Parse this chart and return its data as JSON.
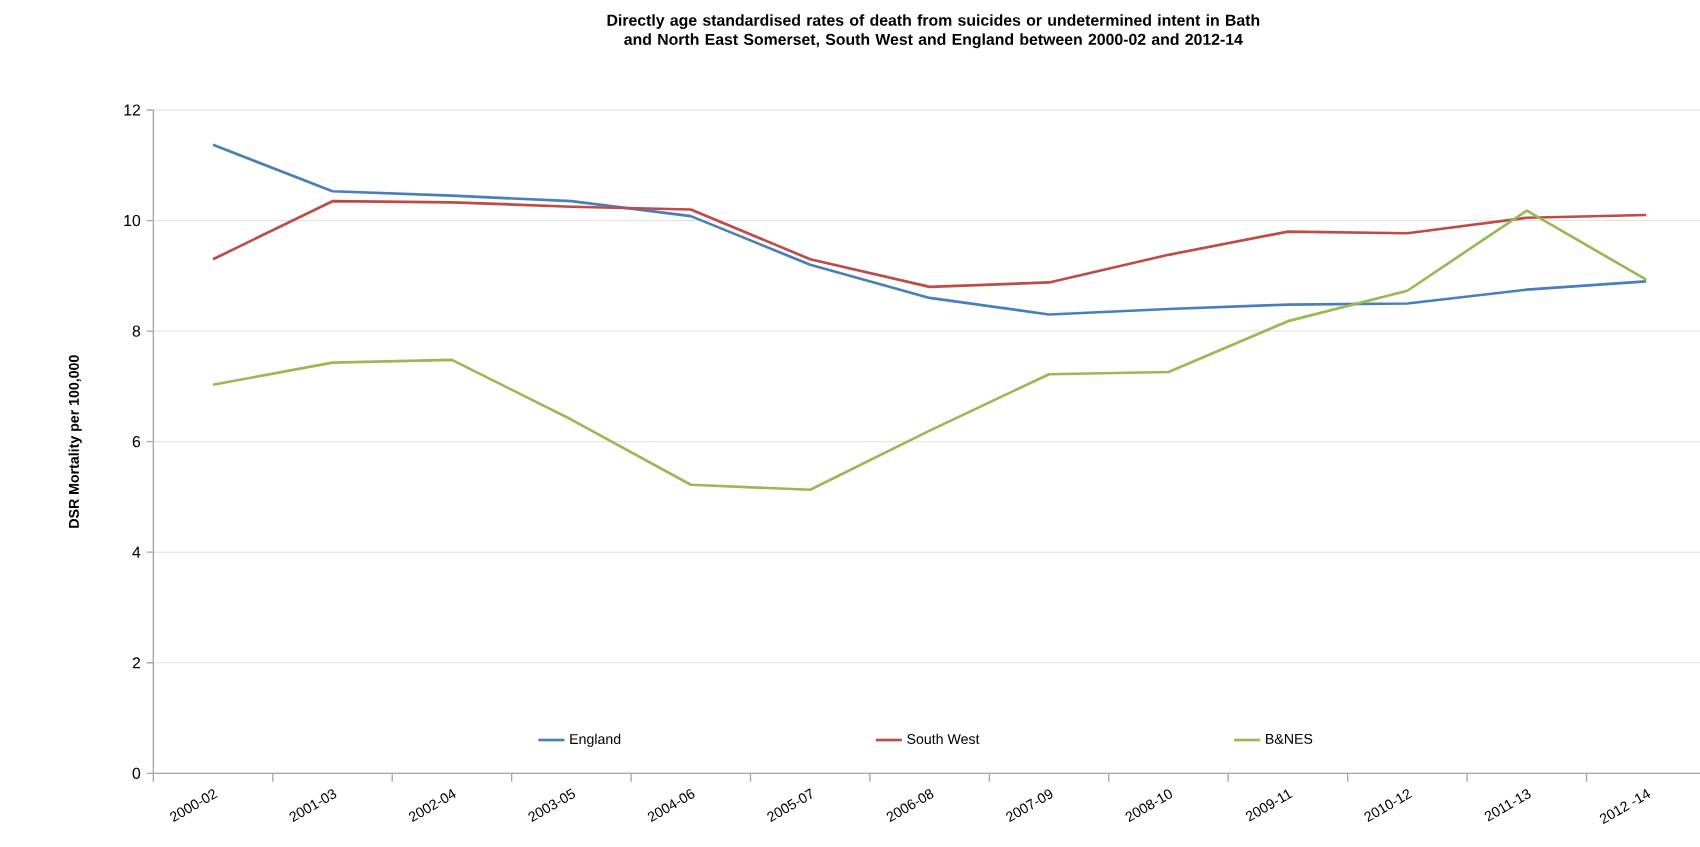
{
  "chart_data": {
    "type": "line",
    "title": "Directly age standardised rates of death from suicides or undetermined intent in Bath and North East Somerset, South West and England between 2000-02 and 2012-14",
    "ylabel": "DSR Mortality per 100,000",
    "categories": [
      "2000-02",
      "2001-03",
      "2002-04",
      "2003-05",
      "2004-06",
      "2005-07",
      "2006-08",
      "2007-09",
      "2008-10",
      "2009-11",
      "2010-12",
      "2011-13",
      "2012 -14"
    ],
    "series": [
      {
        "name": "England",
        "color": "#4a7ebb",
        "values": [
          11.37,
          10.53,
          10.45,
          10.35,
          10.08,
          9.2,
          8.6,
          8.3,
          8.4,
          8.48,
          8.5,
          8.75,
          8.9
        ]
      },
      {
        "name": "South West",
        "color": "#be4b48",
        "values": [
          9.3,
          10.35,
          10.33,
          10.25,
          10.2,
          9.3,
          8.8,
          8.88,
          9.38,
          9.8,
          9.77,
          10.05,
          10.1
        ]
      },
      {
        "name": "B&NES",
        "color": "#98b954",
        "values": [
          7.03,
          7.43,
          7.48,
          6.4,
          5.22,
          5.13,
          6.2,
          7.22,
          7.26,
          8.18,
          8.73,
          10.18,
          8.93
        ]
      }
    ],
    "ylim": [
      0,
      12
    ],
    "yticks": [
      0,
      2,
      4,
      6,
      8,
      10,
      12
    ],
    "grid": "y",
    "legend": "bottom",
    "marker": "none",
    "line_style": "solid"
  }
}
